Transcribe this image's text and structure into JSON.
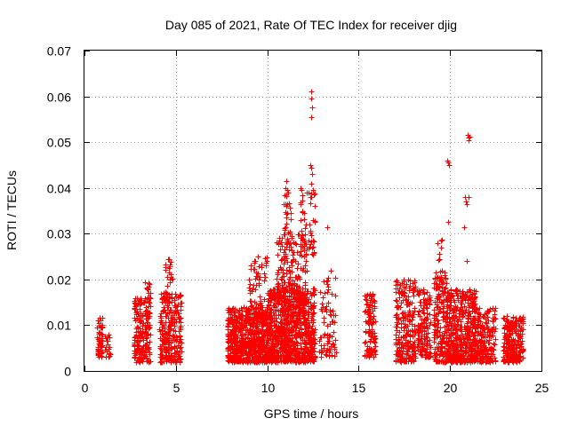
{
  "colors": {
    "marker": "#ff0000",
    "axes": "#000000",
    "grid": "#a0a0a0",
    "background": "#ffffff"
  },
  "chart_data": {
    "type": "scatter",
    "title": "Day 085 of 2021, Rate Of TEC Index for receiver djig",
    "xlabel": "GPS time / hours",
    "ylabel": "ROTI / TECUs",
    "xlim": [
      0,
      25
    ],
    "ylim": [
      0,
      0.07
    ],
    "xticks": [
      0,
      5,
      10,
      15,
      20,
      25
    ],
    "yticks": [
      0,
      0.01,
      0.02,
      0.03,
      0.04,
      0.05,
      0.06,
      0.07
    ],
    "xtick_labels": [
      "0",
      "5",
      "10",
      "15",
      "20",
      "25"
    ],
    "ytick_labels": [
      "0",
      "0.01",
      "0.02",
      "0.03",
      "0.04",
      "0.05",
      "0.06",
      "0.07"
    ],
    "grid": true,
    "marker": "+",
    "clusters": [
      {
        "x": [
          0.7,
          1.0
        ],
        "y": [
          0.003,
          0.012
        ],
        "n": 60
      },
      {
        "x": [
          1.1,
          1.4
        ],
        "y": [
          0.003,
          0.009
        ],
        "n": 20
      },
      {
        "x": [
          2.7,
          3.6
        ],
        "y": [
          0.002,
          0.016
        ],
        "n": 200
      },
      {
        "x": [
          3.3,
          3.6
        ],
        "y": [
          0.012,
          0.02
        ],
        "n": 25
      },
      {
        "x": [
          4.1,
          5.3
        ],
        "y": [
          0.002,
          0.017
        ],
        "n": 250
      },
      {
        "x": [
          4.4,
          4.8
        ],
        "y": [
          0.015,
          0.025
        ],
        "n": 30
      },
      {
        "x": [
          7.8,
          10.0
        ],
        "y": [
          0.002,
          0.014
        ],
        "n": 700
      },
      {
        "x": [
          9.0,
          10.0
        ],
        "y": [
          0.01,
          0.025
        ],
        "n": 80
      },
      {
        "x": [
          10.0,
          12.6
        ],
        "y": [
          0.002,
          0.018
        ],
        "n": 900
      },
      {
        "x": [
          10.5,
          12.2
        ],
        "y": [
          0.015,
          0.03
        ],
        "n": 180
      },
      {
        "x": [
          10.9,
          11.3
        ],
        "y": [
          0.028,
          0.041
        ],
        "n": 30
      },
      {
        "x": [
          11.8,
          12.6
        ],
        "y": [
          0.025,
          0.04
        ],
        "n": 50
      },
      {
        "x": [
          12.8,
          13.8
        ],
        "y": [
          0.003,
          0.022
        ],
        "n": 80
      },
      {
        "x": [
          15.3,
          15.9
        ],
        "y": [
          0.003,
          0.017
        ],
        "n": 120
      },
      {
        "x": [
          17.0,
          18.1
        ],
        "y": [
          0.002,
          0.02
        ],
        "n": 250
      },
      {
        "x": [
          18.2,
          18.9
        ],
        "y": [
          0.003,
          0.018
        ],
        "n": 150
      },
      {
        "x": [
          19.1,
          19.8
        ],
        "y": [
          0.002,
          0.022
        ],
        "n": 180
      },
      {
        "x": [
          19.3,
          19.6
        ],
        "y": [
          0.018,
          0.029
        ],
        "n": 15
      },
      {
        "x": [
          19.8,
          21.4
        ],
        "y": [
          0.002,
          0.018
        ],
        "n": 500
      },
      {
        "x": [
          21.4,
          22.5
        ],
        "y": [
          0.002,
          0.014
        ],
        "n": 200
      },
      {
        "x": [
          22.9,
          24.0
        ],
        "y": [
          0.002,
          0.012
        ],
        "n": 250
      }
    ],
    "points": [
      {
        "x": 12.4,
        "y": 0.061
      },
      {
        "x": 12.4,
        "y": 0.0595
      },
      {
        "x": 12.45,
        "y": 0.0575
      },
      {
        "x": 12.4,
        "y": 0.0555
      },
      {
        "x": 12.35,
        "y": 0.045
      },
      {
        "x": 12.4,
        "y": 0.0445
      },
      {
        "x": 12.45,
        "y": 0.043
      },
      {
        "x": 12.4,
        "y": 0.041
      },
      {
        "x": 12.5,
        "y": 0.0395
      },
      {
        "x": 12.35,
        "y": 0.038
      },
      {
        "x": 20.95,
        "y": 0.0515
      },
      {
        "x": 21.0,
        "y": 0.051
      },
      {
        "x": 21.05,
        "y": 0.0512
      },
      {
        "x": 21.0,
        "y": 0.0505
      },
      {
        "x": 19.85,
        "y": 0.046
      },
      {
        "x": 19.9,
        "y": 0.0455
      },
      {
        "x": 19.95,
        "y": 0.045
      },
      {
        "x": 20.8,
        "y": 0.038
      },
      {
        "x": 20.85,
        "y": 0.037
      },
      {
        "x": 20.9,
        "y": 0.0365
      },
      {
        "x": 21.0,
        "y": 0.038
      },
      {
        "x": 20.75,
        "y": 0.0315
      },
      {
        "x": 19.9,
        "y": 0.0325
      },
      {
        "x": 20.9,
        "y": 0.024
      },
      {
        "x": 13.3,
        "y": 0.0315
      },
      {
        "x": 11.05,
        "y": 0.0415
      },
      {
        "x": 11.1,
        "y": 0.0395
      },
      {
        "x": 12.6,
        "y": 0.036
      },
      {
        "x": 12.5,
        "y": 0.033
      },
      {
        "x": 11.8,
        "y": 0.033
      }
    ]
  }
}
